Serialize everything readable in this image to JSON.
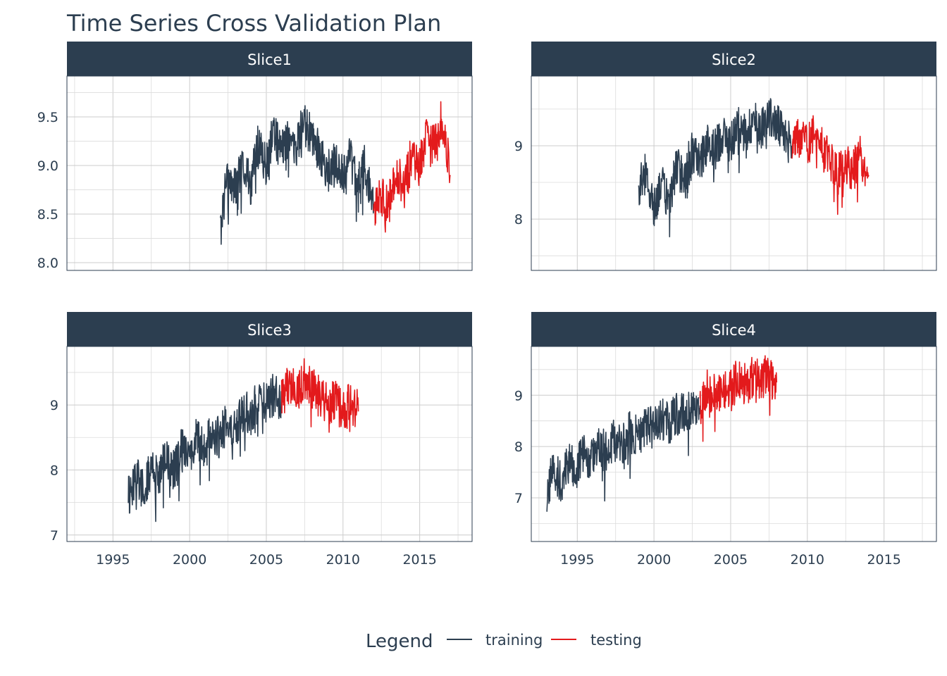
{
  "chart_data": {
    "type": "line",
    "title": "Time Series Cross Validation Plan",
    "legend": {
      "title": "Legend",
      "position": "bottom",
      "entries": [
        {
          "name": "training",
          "color": "#2c3e50"
        },
        {
          "name": "testing",
          "color": "#e31a1c"
        }
      ]
    },
    "x_axis": {
      "type": "date",
      "range": [
        "1992-01-01",
        "2018-06-01"
      ],
      "ticks": [
        "1995",
        "2000",
        "2005",
        "2010",
        "2015"
      ]
    },
    "grid": true,
    "panels": [
      {
        "label": "Slice1",
        "ylim": [
          7.92,
          9.92
        ],
        "yticks": [
          "8.0",
          "8.5",
          "9.0",
          "9.5"
        ],
        "training": {
          "x": [
            "2002-01",
            "2002-06",
            "2003-01",
            "2003-06",
            "2004-01",
            "2004-06",
            "2005-01",
            "2005-06",
            "2006-01",
            "2006-06",
            "2007-01",
            "2007-06",
            "2008-01",
            "2008-06",
            "2009-01",
            "2009-06",
            "2010-01",
            "2010-06",
            "2011-01",
            "2011-06",
            "2012-01"
          ],
          "y": [
            8.3,
            8.9,
            8.75,
            9.05,
            8.8,
            9.2,
            9.0,
            9.35,
            9.15,
            9.3,
            9.2,
            9.45,
            9.3,
            9.15,
            8.95,
            9.05,
            8.9,
            9.1,
            8.8,
            9.0,
            8.55
          ]
        },
        "testing": {
          "x": [
            "2012-01",
            "2012-06",
            "2013-01",
            "2013-06",
            "2014-01",
            "2014-06",
            "2015-01",
            "2015-06",
            "2016-01",
            "2016-06",
            "2017-01"
          ],
          "y": [
            8.55,
            8.7,
            8.6,
            8.95,
            8.8,
            9.1,
            9.0,
            9.3,
            9.2,
            9.5,
            8.9
          ]
        }
      },
      {
        "label": "Slice2",
        "ylim": [
          7.3,
          9.95
        ],
        "yticks": [
          "8",
          "9"
        ],
        "training": {
          "x": [
            "1999-01",
            "1999-06",
            "2000-01",
            "2000-06",
            "2001-01",
            "2001-06",
            "2002-01",
            "2002-06",
            "2003-01",
            "2003-06",
            "2004-01",
            "2004-06",
            "2005-01",
            "2005-06",
            "2006-01",
            "2006-06",
            "2007-01",
            "2007-06",
            "2008-01",
            "2008-06",
            "2009-01"
          ],
          "y": [
            8.4,
            8.6,
            8.1,
            8.5,
            8.2,
            8.7,
            8.6,
            8.9,
            8.8,
            9.0,
            8.95,
            9.15,
            9.05,
            9.25,
            9.15,
            9.35,
            9.25,
            9.4,
            9.3,
            9.15,
            9.0
          ]
        },
        "testing": {
          "x": [
            "2009-01",
            "2009-06",
            "2010-01",
            "2010-06",
            "2011-01",
            "2011-06",
            "2012-01",
            "2012-06",
            "2013-01",
            "2013-06",
            "2014-01"
          ],
          "y": [
            9.0,
            9.1,
            9.0,
            9.15,
            8.95,
            8.8,
            8.6,
            8.75,
            8.65,
            8.9,
            8.6
          ]
        }
      },
      {
        "label": "Slice3",
        "ylim": [
          6.9,
          9.9
        ],
        "yticks": [
          "7",
          "8",
          "9"
        ],
        "training": {
          "x": [
            "1996-01",
            "1996-06",
            "1997-01",
            "1997-06",
            "1998-01",
            "1998-06",
            "1999-01",
            "1999-06",
            "2000-01",
            "2000-06",
            "2001-01",
            "2001-06",
            "2002-01",
            "2002-06",
            "2003-01",
            "2003-06",
            "2004-01",
            "2004-06",
            "2005-01",
            "2005-06",
            "2006-01"
          ],
          "y": [
            7.6,
            7.9,
            7.7,
            8.0,
            7.85,
            8.2,
            8.0,
            8.3,
            8.25,
            8.5,
            8.3,
            8.6,
            8.5,
            8.75,
            8.65,
            8.9,
            8.85,
            9.05,
            9.0,
            9.15,
            9.1
          ]
        },
        "testing": {
          "x": [
            "2006-01",
            "2006-06",
            "2007-01",
            "2007-06",
            "2008-01",
            "2008-06",
            "2009-01",
            "2009-06",
            "2010-01",
            "2010-06",
            "2011-01"
          ],
          "y": [
            9.1,
            9.3,
            9.2,
            9.4,
            9.25,
            9.15,
            9.0,
            9.1,
            8.9,
            9.05,
            8.9
          ]
        }
      },
      {
        "label": "Slice4",
        "ylim": [
          6.15,
          9.95
        ],
        "yticks": [
          "7",
          "8",
          "9"
        ],
        "training": {
          "x": [
            "1993-01",
            "1993-06",
            "1994-01",
            "1994-06",
            "1995-01",
            "1995-06",
            "1996-01",
            "1996-06",
            "1997-01",
            "1997-06",
            "1998-01",
            "1998-06",
            "1999-01",
            "1999-06",
            "2000-01",
            "2000-06",
            "2001-01",
            "2001-06",
            "2002-01",
            "2002-06",
            "2003-01"
          ],
          "y": [
            7.1,
            7.5,
            7.3,
            7.7,
            7.6,
            7.9,
            7.7,
            8.0,
            7.85,
            8.15,
            8.05,
            8.3,
            8.2,
            8.45,
            8.35,
            8.55,
            8.45,
            8.65,
            8.6,
            8.75,
            8.8
          ]
        },
        "testing": {
          "x": [
            "2003-01",
            "2003-06",
            "2004-01",
            "2004-06",
            "2005-01",
            "2005-06",
            "2006-01",
            "2006-06",
            "2007-01",
            "2007-06",
            "2008-01"
          ],
          "y": [
            8.8,
            9.1,
            9.0,
            9.2,
            9.1,
            9.3,
            9.2,
            9.35,
            9.3,
            9.5,
            9.25
          ]
        }
      }
    ]
  }
}
